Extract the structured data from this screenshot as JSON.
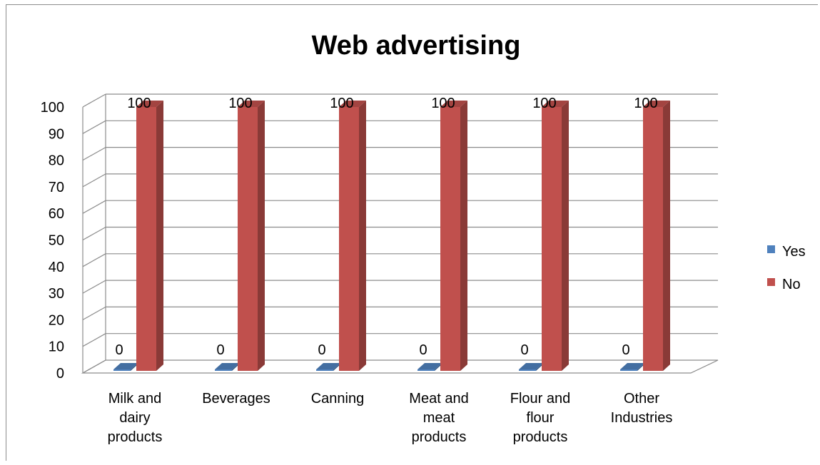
{
  "chart_data": {
    "type": "bar",
    "title": "Web advertising",
    "categories": [
      "Milk and dairy products",
      "Beverages",
      "Canning",
      "Meat and meat products",
      "Flour and flour products",
      "Other Industries"
    ],
    "category_lines": [
      [
        "Milk and",
        "dairy",
        "products"
      ],
      [
        "Beverages"
      ],
      [
        "Canning"
      ],
      [
        "Meat and",
        "meat",
        "products"
      ],
      [
        "Flour and",
        "flour",
        "products"
      ],
      [
        "Other",
        "Industries"
      ]
    ],
    "series": [
      {
        "name": "Yes",
        "values": [
          0,
          0,
          0,
          0,
          0,
          0
        ],
        "color": "#4f81bd"
      },
      {
        "name": "No",
        "values": [
          100,
          100,
          100,
          100,
          100,
          100
        ],
        "color": "#c0504d"
      }
    ],
    "yticks": [
      0,
      10,
      20,
      30,
      40,
      50,
      60,
      70,
      80,
      90,
      100
    ],
    "ylim": [
      0,
      100
    ],
    "grid": true,
    "data_labels": true,
    "legend_position": "right",
    "three_d": true
  }
}
